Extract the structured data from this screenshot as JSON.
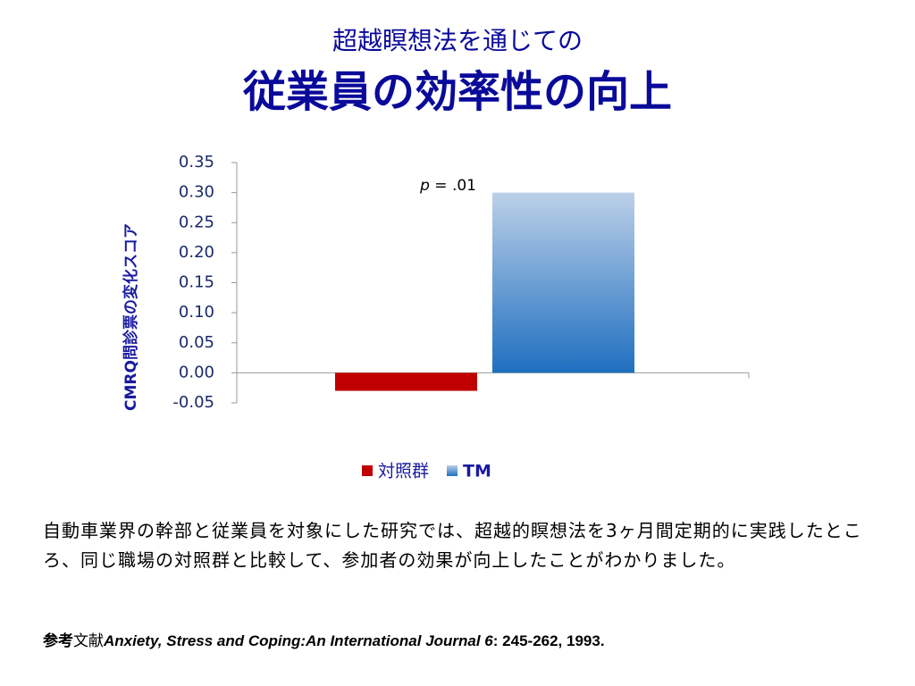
{
  "header": {
    "subtitle": "超越瞑想法を通じての",
    "title": "従業員の効率性の向上"
  },
  "chart_data": {
    "type": "bar",
    "ylabel": "CMRQ問診票の変化スコア",
    "categories": [
      null
    ],
    "series": [
      {
        "name": "対照群",
        "color": "#c00000",
        "values": [
          -0.03
        ]
      },
      {
        "name": "TM",
        "color": "#1f6fc0",
        "values": [
          0.3
        ]
      }
    ],
    "ylim": [
      -0.05,
      0.35
    ],
    "yticks": [
      -0.05,
      {
        "value": 0,
        "label": "0.00"
      },
      0.05,
      {
        "value": 0.1,
        "label": "0.10"
      },
      0.15,
      {
        "value": 0.2,
        "label": "0.20"
      },
      0.25,
      {
        "value": 0.3,
        "label": "0.30"
      },
      0.35
    ],
    "annotation": {
      "italic": "p",
      "text": " = .01"
    },
    "legend": "bottom",
    "grid": false
  },
  "body": {
    "text": "自動車業界の幹部と従業員を対象にした研究では、超越的瞑想法を3ヶ月間定期的に実践したところ、同じ職場の対照群と比較して、参加者の効果が向上したことがわかりました。",
    "reference": [
      "参考",
      "文献",
      "Anxiety, Stress and Coping:An International Journal 6",
      ": 245-262, 1993."
    ]
  }
}
